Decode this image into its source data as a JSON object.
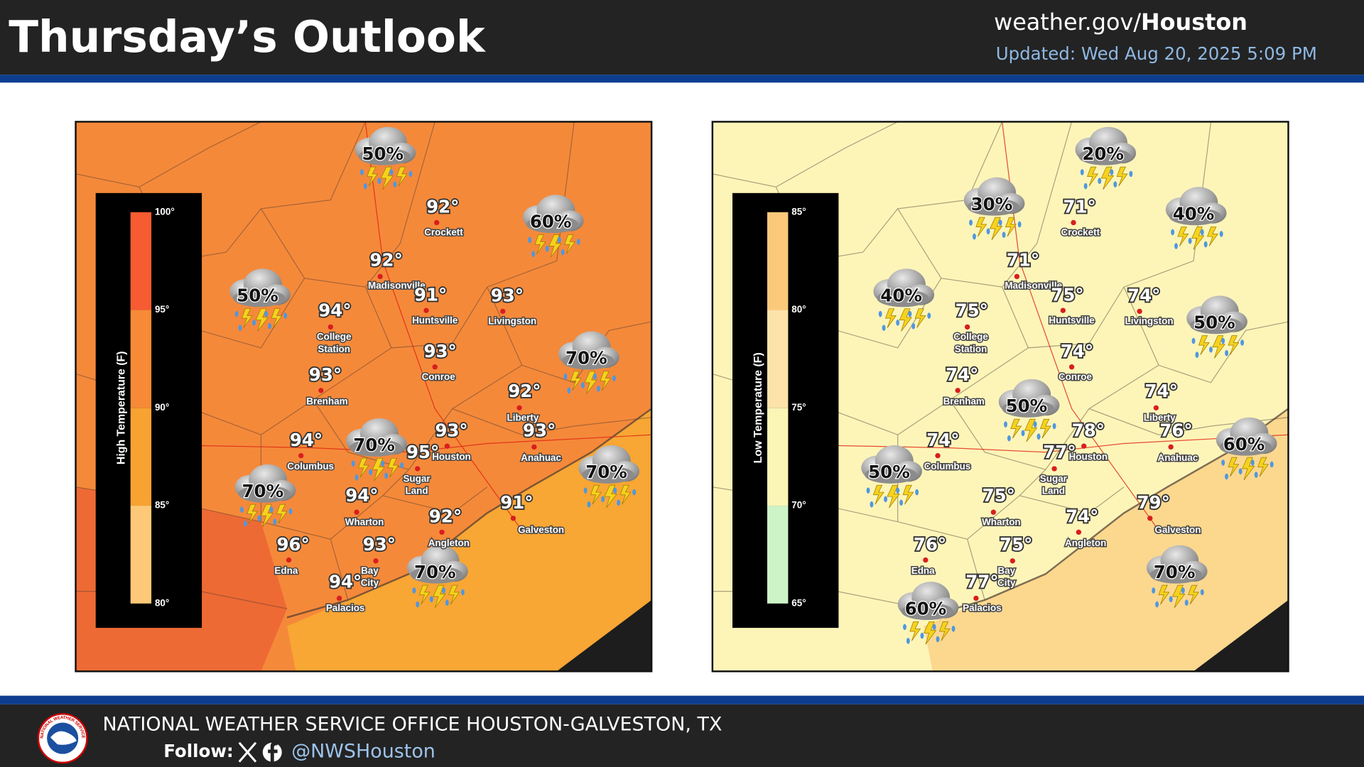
{
  "header": {
    "title": "Thursday’s Outlook",
    "site_prefix": "weather.gov/",
    "site_bold": "Houston",
    "updated": "Updated: Wed Aug 20, 2025 5:09 PM"
  },
  "maps": [
    {
      "legend_title": "High Temperature (F)",
      "legend_ticks": [
        "100°",
        "95°",
        "90°",
        "85°",
        "80°"
      ],
      "cities": [
        {
          "name": [
            "Crockett"
          ],
          "temp": "92°"
        },
        {
          "name": [
            "Madisonville"
          ],
          "temp": "92°"
        },
        {
          "name": [
            "Huntsville"
          ],
          "temp": "91°"
        },
        {
          "name": [
            "Livingston"
          ],
          "temp": "93°"
        },
        {
          "name": [
            "College",
            "Station"
          ],
          "temp": "94°"
        },
        {
          "name": [
            "Conroe"
          ],
          "temp": "93°"
        },
        {
          "name": [
            "Brenham"
          ],
          "temp": "93°"
        },
        {
          "name": [
            "Liberty"
          ],
          "temp": "92°"
        },
        {
          "name": [
            "Columbus"
          ],
          "temp": "94°"
        },
        {
          "name": [
            "Houston"
          ],
          "temp": "93°"
        },
        {
          "name": [
            "Anahuac"
          ],
          "temp": "93°"
        },
        {
          "name": [
            "Sugar",
            "Land"
          ],
          "temp": "95°"
        },
        {
          "name": [
            "Wharton"
          ],
          "temp": "94°"
        },
        {
          "name": [
            "Galveston"
          ],
          "temp": "91°"
        },
        {
          "name": [
            "Angleton"
          ],
          "temp": "92°"
        },
        {
          "name": [
            "Edna"
          ],
          "temp": "96°"
        },
        {
          "name": [
            "Bay",
            "City"
          ],
          "temp": "93°"
        },
        {
          "name": [
            "Palacios"
          ],
          "temp": "94°"
        }
      ],
      "storms": [
        "50%",
        "60%",
        "50%",
        "70%",
        "70%",
        "70%",
        "70%",
        "70%"
      ]
    },
    {
      "legend_title": "Low Temperature (F)",
      "legend_ticks": [
        "85°",
        "80°",
        "75°",
        "70°",
        "65°"
      ],
      "cities": [
        {
          "name": [
            "Crockett"
          ],
          "temp": "71°"
        },
        {
          "name": [
            "Madisonville"
          ],
          "temp": "71°"
        },
        {
          "name": [
            "Huntsville"
          ],
          "temp": "75°"
        },
        {
          "name": [
            "Livingston"
          ],
          "temp": "74°"
        },
        {
          "name": [
            "College",
            "Station"
          ],
          "temp": "75°"
        },
        {
          "name": [
            "Conroe"
          ],
          "temp": "74°"
        },
        {
          "name": [
            "Brenham"
          ],
          "temp": "74°"
        },
        {
          "name": [
            "Liberty"
          ],
          "temp": "74°"
        },
        {
          "name": [
            "Columbus"
          ],
          "temp": "74°"
        },
        {
          "name": [
            "Houston"
          ],
          "temp": "78°"
        },
        {
          "name": [
            "Anahuac"
          ],
          "temp": "76°"
        },
        {
          "name": [
            "Sugar",
            "Land"
          ],
          "temp": "77°"
        },
        {
          "name": [
            "Wharton"
          ],
          "temp": "75°"
        },
        {
          "name": [
            "Galveston"
          ],
          "temp": "79°"
        },
        {
          "name": [
            "Angleton"
          ],
          "temp": "74°"
        },
        {
          "name": [
            "Edna"
          ],
          "temp": "76°"
        },
        {
          "name": [
            "Bay",
            "City"
          ],
          "temp": "75°"
        },
        {
          "name": [
            "Palacios"
          ],
          "temp": "77°"
        }
      ],
      "storms": [
        "20%",
        "30%",
        "40%",
        "40%",
        "50%",
        "50%",
        "60%",
        "50%",
        "70%",
        "60%"
      ]
    }
  ],
  "footer": {
    "logo_text": "NATIONAL WEATHER SERVICE",
    "office": "NATIONAL WEATHER SERVICE OFFICE HOUSTON-GALVESTON, TX",
    "follow": "Follow:",
    "handle": "@NWSHouston"
  }
}
